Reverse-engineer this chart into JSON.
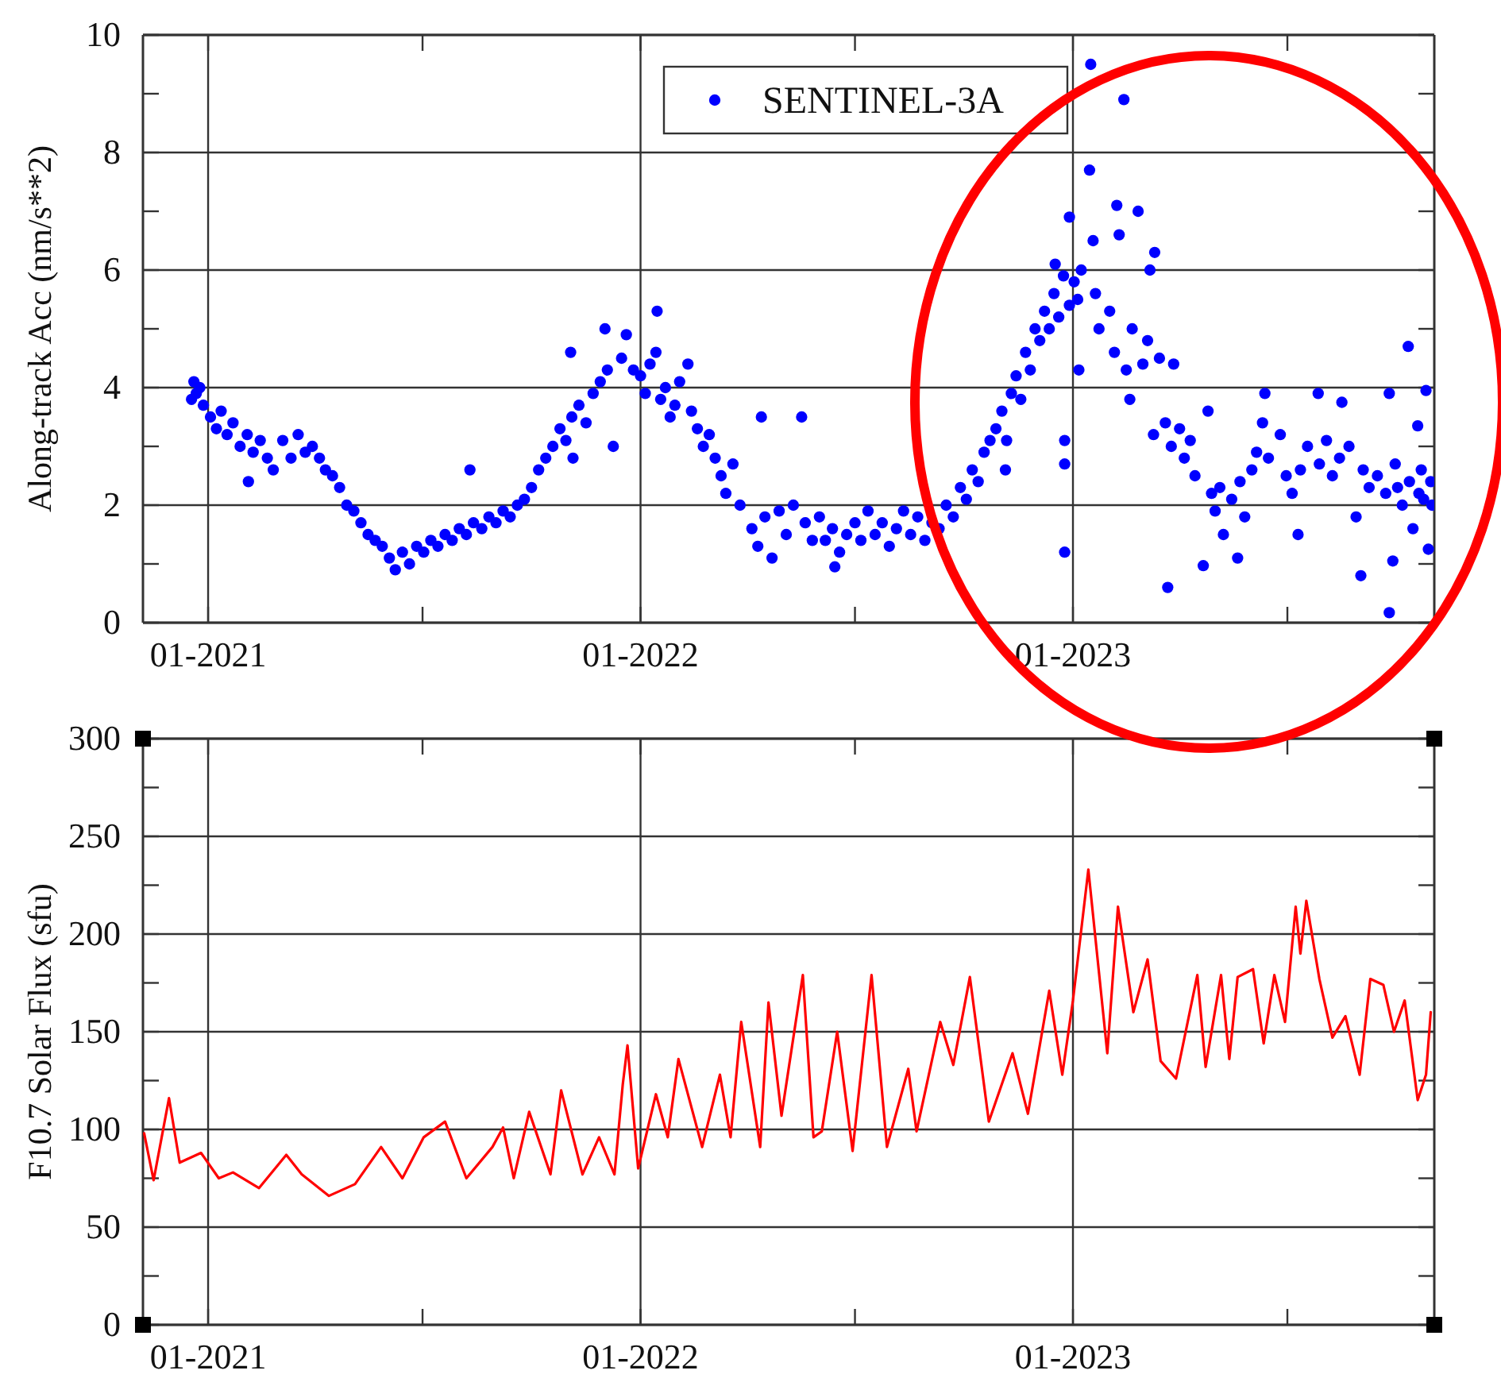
{
  "chart_data": [
    {
      "type": "scatter",
      "ylabel": "Along-track Acc (nm/s**2)",
      "xlim": [
        "2020-11-07",
        "2023-11-02"
      ],
      "ylim": [
        0,
        10
      ],
      "xticks": [
        {
          "value": "2021-01-01",
          "label": "01-2021"
        },
        {
          "value": "2021-07-01",
          "label": null
        },
        {
          "value": "2022-01-01",
          "label": "01-2022"
        },
        {
          "value": "2022-07-01",
          "label": null
        },
        {
          "value": "2023-01-01",
          "label": "01-2023"
        },
        {
          "value": "2023-07-01",
          "label": null
        }
      ],
      "yticks": [
        0,
        {
          "value": 1,
          "label": null
        },
        2,
        {
          "value": 3,
          "label": null
        },
        4,
        {
          "value": 5,
          "label": null
        },
        6,
        {
          "value": 7,
          "label": null
        },
        8,
        {
          "value": 9,
          "label": null
        },
        10
      ],
      "grid": true,
      "legend": "top",
      "marker": "circle",
      "series": [
        {
          "name": "SENTINEL-3A",
          "color": "#0000ff",
          "x": [
            "2020-12-18",
            "2020-12-20",
            "2020-12-22",
            "2020-12-25",
            "2020-12-28",
            "2021-01-03",
            "2021-01-08",
            "2021-01-12",
            "2021-01-17",
            "2021-01-22",
            "2021-01-28",
            "2021-02-03",
            "2021-02-04",
            "2021-02-08",
            "2021-02-14",
            "2021-02-20",
            "2021-02-25",
            "2021-03-05",
            "2021-03-12",
            "2021-03-18",
            "2021-03-24",
            "2021-03-30",
            "2021-04-05",
            "2021-04-10",
            "2021-04-16",
            "2021-04-22",
            "2021-04-28",
            "2021-05-04",
            "2021-05-10",
            "2021-05-16",
            "2021-05-22",
            "2021-05-28",
            "2021-06-03",
            "2021-06-08",
            "2021-06-14",
            "2021-06-20",
            "2021-06-26",
            "2021-07-02",
            "2021-07-08",
            "2021-07-14",
            "2021-07-20",
            "2021-07-26",
            "2021-08-01",
            "2021-08-07",
            "2021-08-10",
            "2021-08-13",
            "2021-08-20",
            "2021-08-26",
            "2021-09-01",
            "2021-09-07",
            "2021-09-13",
            "2021-09-19",
            "2021-09-25",
            "2021-10-01",
            "2021-10-07",
            "2021-10-13",
            "2021-10-19",
            "2021-10-25",
            "2021-10-30",
            "2021-11-03",
            "2021-11-04",
            "2021-11-05",
            "2021-11-10",
            "2021-11-16",
            "2021-11-22",
            "2021-11-28",
            "2021-12-02",
            "2021-12-04",
            "2021-12-09",
            "2021-12-16",
            "2021-12-20",
            "2021-12-26",
            "2022-01-01",
            "2022-01-05",
            "2022-01-09",
            "2022-01-14",
            "2022-01-15",
            "2022-01-18",
            "2022-01-22",
            "2022-01-26",
            "2022-01-30",
            "2022-02-03",
            "2022-02-10",
            "2022-02-13",
            "2022-02-18",
            "2022-02-23",
            "2022-02-28",
            "2022-03-05",
            "2022-03-10",
            "2022-03-14",
            "2022-03-20",
            "2022-03-26",
            "2022-04-05",
            "2022-04-10",
            "2022-04-13",
            "2022-04-16",
            "2022-04-22",
            "2022-04-28",
            "2022-05-04",
            "2022-05-10",
            "2022-05-17",
            "2022-05-20",
            "2022-05-26",
            "2022-06-01",
            "2022-06-06",
            "2022-06-12",
            "2022-06-14",
            "2022-06-18",
            "2022-06-24",
            "2022-07-01",
            "2022-07-06",
            "2022-07-12",
            "2022-07-18",
            "2022-07-24",
            "2022-07-30",
            "2022-08-05",
            "2022-08-11",
            "2022-08-17",
            "2022-08-23",
            "2022-08-29",
            "2022-09-04",
            "2022-09-10",
            "2022-09-16",
            "2022-09-22",
            "2022-09-28",
            "2022-10-03",
            "2022-10-08",
            "2022-10-13",
            "2022-10-18",
            "2022-10-23",
            "2022-10-28",
            "2022-11-02",
            "2022-11-05",
            "2022-11-06",
            "2022-11-10",
            "2022-11-14",
            "2022-11-18",
            "2022-11-22",
            "2022-11-26",
            "2022-11-30",
            "2022-12-04",
            "2022-12-08",
            "2022-12-12",
            "2022-12-16",
            "2022-12-17",
            "2022-12-20",
            "2022-12-24",
            "2022-12-25",
            "2022-12-25",
            "2022-12-25",
            "2022-12-29",
            "2022-12-29",
            "2023-01-02",
            "2023-01-05",
            "2023-01-06",
            "2023-01-08",
            "2023-01-15",
            "2023-01-16",
            "2023-01-18",
            "2023-01-20",
            "2023-01-23",
            "2023-02-01",
            "2023-02-05",
            "2023-02-07",
            "2023-02-09",
            "2023-02-13",
            "2023-02-15",
            "2023-02-18",
            "2023-02-20",
            "2023-02-25",
            "2023-03-01",
            "2023-03-05",
            "2023-03-07",
            "2023-03-10",
            "2023-03-11",
            "2023-03-15",
            "2023-03-20",
            "2023-03-22",
            "2023-03-25",
            "2023-03-27",
            "2023-04-01",
            "2023-04-05",
            "2023-04-10",
            "2023-04-14",
            "2023-04-21",
            "2023-04-25",
            "2023-04-28",
            "2023-05-01",
            "2023-05-05",
            "2023-05-08",
            "2023-05-15",
            "2023-05-20",
            "2023-05-22",
            "2023-05-26",
            "2023-06-01",
            "2023-06-05",
            "2023-06-10",
            "2023-06-12",
            "2023-06-15",
            "2023-06-25",
            "2023-06-30",
            "2023-07-05",
            "2023-07-10",
            "2023-07-12",
            "2023-07-18",
            "2023-07-27",
            "2023-07-28",
            "2023-08-03",
            "2023-08-08",
            "2023-08-14",
            "2023-08-16",
            "2023-08-22",
            "2023-08-28",
            "2023-09-01",
            "2023-09-03",
            "2023-09-08",
            "2023-09-15",
            "2023-09-22",
            "2023-09-25",
            "2023-09-25",
            "2023-09-28",
            "2023-09-30",
            "2023-10-02",
            "2023-10-06",
            "2023-10-11",
            "2023-10-12",
            "2023-10-15",
            "2023-10-19",
            "2023-10-20",
            "2023-10-22",
            "2023-10-24",
            "2023-10-26",
            "2023-10-28",
            "2023-10-30",
            "2023-10-31"
          ],
          "values": [
            3.8,
            4.1,
            3.9,
            4.0,
            3.7,
            3.5,
            3.3,
            3.6,
            3.2,
            3.4,
            3.0,
            3.2,
            2.4,
            2.9,
            3.1,
            2.8,
            2.6,
            3.1,
            2.8,
            3.2,
            2.9,
            3.0,
            2.8,
            2.6,
            2.5,
            2.3,
            2.0,
            1.9,
            1.7,
            1.5,
            1.4,
            1.3,
            1.1,
            0.9,
            1.2,
            1.0,
            1.3,
            1.2,
            1.4,
            1.3,
            1.5,
            1.4,
            1.6,
            1.5,
            2.6,
            1.7,
            1.6,
            1.8,
            1.7,
            1.9,
            1.8,
            2.0,
            2.1,
            2.3,
            2.6,
            2.8,
            3.0,
            3.3,
            3.1,
            4.6,
            3.5,
            2.8,
            3.7,
            3.4,
            3.9,
            4.1,
            5.0,
            4.3,
            3.0,
            4.5,
            4.9,
            4.3,
            4.2,
            3.9,
            4.4,
            4.6,
            5.3,
            3.8,
            4.0,
            3.5,
            3.7,
            4.1,
            4.4,
            3.6,
            3.3,
            3.0,
            3.2,
            2.8,
            2.5,
            2.2,
            2.7,
            2.0,
            1.6,
            1.3,
            3.5,
            1.8,
            1.1,
            1.9,
            1.5,
            2.0,
            3.5,
            1.7,
            1.4,
            1.8,
            1.4,
            1.6,
            0.95,
            1.2,
            1.5,
            1.7,
            1.4,
            1.9,
            1.5,
            1.7,
            1.3,
            1.6,
            1.9,
            1.5,
            1.8,
            1.4,
            1.7,
            1.6,
            2.0,
            1.8,
            2.3,
            2.1,
            2.6,
            2.4,
            2.9,
            3.1,
            3.3,
            3.6,
            2.6,
            3.1,
            3.9,
            4.2,
            3.8,
            4.6,
            4.3,
            5.0,
            4.8,
            5.3,
            5.0,
            5.6,
            6.1,
            5.2,
            5.9,
            3.1,
            2.7,
            1.2,
            5.4,
            6.9,
            5.8,
            5.5,
            4.3,
            6.0,
            7.7,
            9.5,
            6.5,
            5.6,
            5.0,
            5.3,
            4.6,
            7.1,
            6.6,
            8.9,
            4.3,
            3.8,
            5.0,
            7.0,
            4.4,
            4.8,
            6.0,
            3.2,
            6.3,
            4.5,
            3.4,
            0.6,
            3.0,
            4.4,
            3.3,
            2.8,
            3.1,
            2.5,
            0.97,
            3.6,
            2.2,
            1.9,
            2.3,
            1.5,
            2.1,
            1.1,
            2.4,
            1.8,
            2.6,
            2.9,
            3.4,
            3.9,
            2.8,
            3.2,
            2.5,
            2.2,
            1.5,
            2.6,
            3.0,
            3.9,
            2.7,
            3.1,
            2.5,
            2.8,
            3.75,
            3.0,
            1.8,
            0.8,
            2.6,
            2.3,
            2.5,
            2.2,
            3.9,
            0.17,
            1.05,
            2.7,
            2.3,
            2.0,
            4.7,
            2.4,
            1.6,
            3.35,
            2.2,
            2.6,
            2.1,
            3.95,
            1.25,
            2.4,
            2.0
          ]
        }
      ]
    },
    {
      "type": "line",
      "ylabel": "F10.7 Solar Flux (sfu)",
      "xlim": [
        "2020-11-07",
        "2023-11-02"
      ],
      "ylim": [
        0,
        300
      ],
      "xticks": [
        {
          "value": "2021-01-01",
          "label": "01-2021"
        },
        {
          "value": "2021-07-01",
          "label": null
        },
        {
          "value": "2022-01-01",
          "label": "01-2022"
        },
        {
          "value": "2022-07-01",
          "label": null
        },
        {
          "value": "2023-01-01",
          "label": "01-2023"
        },
        {
          "value": "2023-07-01",
          "label": null
        }
      ],
      "yticks": [
        0,
        {
          "value": 25,
          "label": null
        },
        50,
        {
          "value": 75,
          "label": null
        },
        100,
        {
          "value": 125,
          "label": null
        },
        150,
        {
          "value": 175,
          "label": null
        },
        200,
        {
          "value": 225,
          "label": null
        },
        250,
        {
          "value": 275,
          "label": null
        },
        300
      ],
      "grid": true,
      "legend": false,
      "marker": "none",
      "line_style": "solid",
      "series": [
        {
          "color": "#ff0000",
          "x": [
            "2020-11-08",
            "2020-11-16",
            "2020-11-29",
            "2020-12-08",
            "2020-12-26",
            "2021-01-10",
            "2021-01-22",
            "2021-02-13",
            "2021-03-08",
            "2021-03-21",
            "2021-04-13",
            "2021-05-05",
            "2021-05-27",
            "2021-06-14",
            "2021-07-02",
            "2021-07-20",
            "2021-08-07",
            "2021-08-29",
            "2021-09-07",
            "2021-09-16",
            "2021-09-29",
            "2021-10-17",
            "2021-10-26",
            "2021-11-13",
            "2021-11-27",
            "2021-12-10",
            "2021-12-17",
            "2021-12-21",
            "2021-12-30",
            "2022-01-14",
            "2022-01-24",
            "2022-02-02",
            "2022-02-22",
            "2022-03-09",
            "2022-03-18",
            "2022-03-27",
            "2022-04-12",
            "2022-04-19",
            "2022-04-30",
            "2022-05-18",
            "2022-05-27",
            "2022-06-03",
            "2022-06-16",
            "2022-06-29",
            "2022-07-15",
            "2022-07-28",
            "2022-08-15",
            "2022-08-22",
            "2022-09-11",
            "2022-09-22",
            "2022-10-06",
            "2022-10-22",
            "2022-11-11",
            "2022-11-24",
            "2022-12-12",
            "2022-12-23",
            "2023-01-01",
            "2023-01-14",
            "2023-01-30",
            "2023-02-08",
            "2023-02-21",
            "2023-03-05",
            "2023-03-16",
            "2023-03-29",
            "2023-04-16",
            "2023-04-23",
            "2023-05-06",
            "2023-05-13",
            "2023-05-20",
            "2023-06-02",
            "2023-06-11",
            "2023-06-20",
            "2023-06-29",
            "2023-07-08",
            "2023-07-12",
            "2023-07-17",
            "2023-07-28",
            "2023-08-08",
            "2023-08-19",
            "2023-08-31",
            "2023-09-09",
            "2023-09-20",
            "2023-09-29",
            "2023-10-08",
            "2023-10-19",
            "2023-10-26",
            "2023-10-30"
          ],
          "values": [
            98,
            74,
            116,
            83,
            88,
            75,
            78,
            70,
            87,
            77,
            66,
            72,
            91,
            75,
            96,
            104,
            75,
            91,
            101,
            75,
            109,
            77,
            120,
            77,
            96,
            77,
            123,
            143,
            80,
            118,
            96,
            136,
            91,
            128,
            96,
            155,
            91,
            165,
            107,
            179,
            96,
            99,
            150,
            89,
            179,
            91,
            131,
            99,
            155,
            133,
            178,
            104,
            139,
            108,
            171,
            128,
            166,
            233,
            139,
            214,
            160,
            187,
            135,
            126,
            179,
            132,
            179,
            136,
            178,
            182,
            144,
            179,
            155,
            214,
            190,
            217,
            177,
            147,
            158,
            128,
            177,
            174,
            150,
            166,
            115,
            128,
            160
          ]
        }
      ]
    }
  ]
}
